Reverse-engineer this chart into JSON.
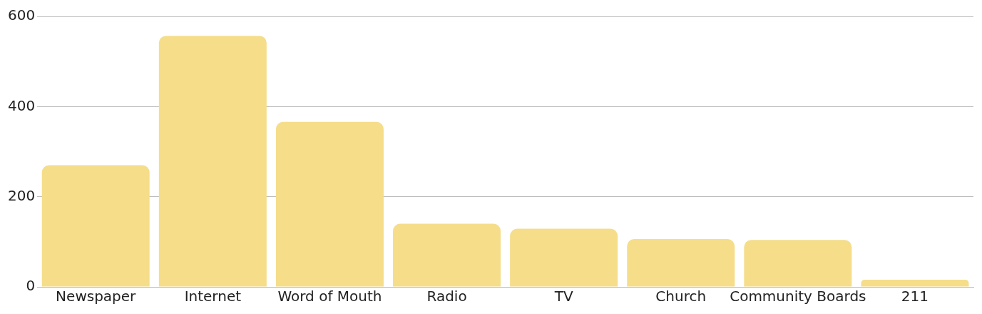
{
  "chart_data": {
    "type": "bar",
    "categories": [
      "Newspaper",
      "Internet",
      "Word of Mouth",
      "Radio",
      "TV",
      "Church",
      "Community Boards",
      "211"
    ],
    "values": [
      270,
      557,
      366,
      140,
      129,
      106,
      104,
      16
    ],
    "color": "#f5dd8a",
    "ylim": [
      0,
      600
    ],
    "yticks": [
      0,
      200,
      400,
      600
    ],
    "grid": "y",
    "legend": false
  }
}
